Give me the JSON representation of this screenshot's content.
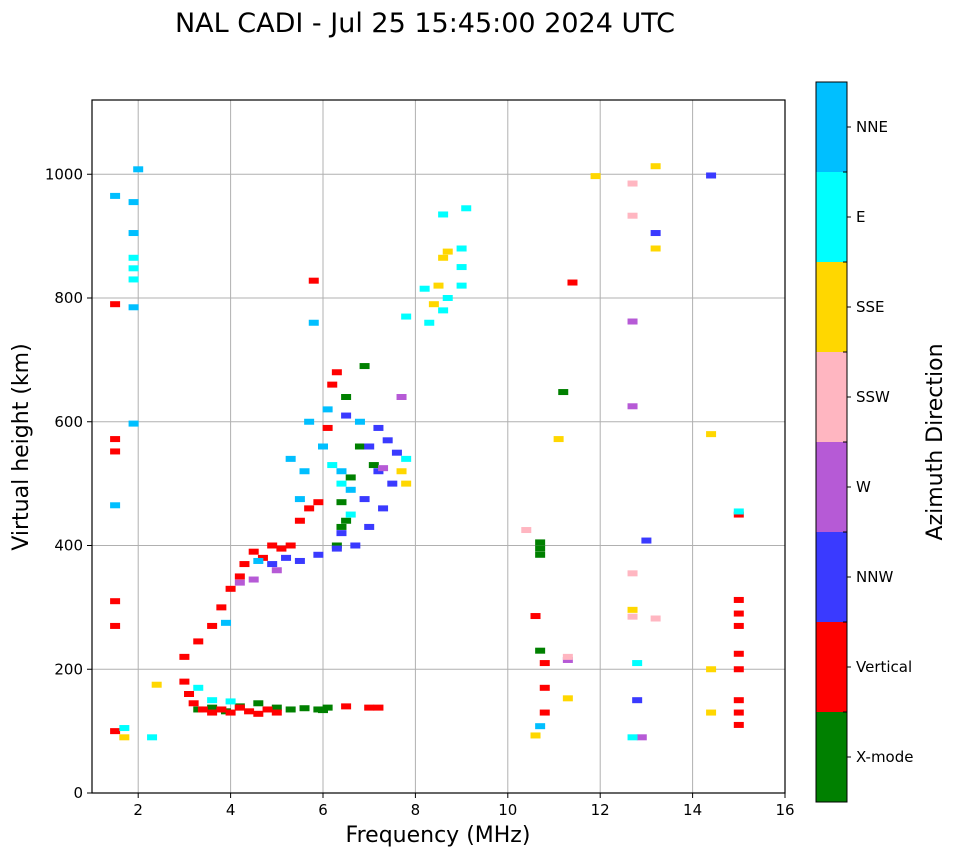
{
  "chart_data": {
    "type": "scatter",
    "title": "NAL CADI - Jul 25 15:45:00 2024 UTC",
    "xlabel": "Frequency (MHz)",
    "ylabel": "Virtual height (km)",
    "xlim": [
      1,
      16
    ],
    "ylim": [
      0,
      1120
    ],
    "xticks": [
      2,
      4,
      6,
      8,
      10,
      12,
      14,
      16
    ],
    "yticks": [
      0,
      200,
      400,
      600,
      800,
      1000
    ],
    "grid": true,
    "colorbar": {
      "label": "Azimuth Direction",
      "categories": [
        {
          "name": "X-mode",
          "color": "#008000"
        },
        {
          "name": "Vertical",
          "color": "#ff0000"
        },
        {
          "name": "NNW",
          "color": "#3a3aff"
        },
        {
          "name": "W",
          "color": "#b65ad6"
        },
        {
          "name": "SSW",
          "color": "#ffb6c1"
        },
        {
          "name": "SSE",
          "color": "#ffd700"
        },
        {
          "name": "E",
          "color": "#00ffff"
        },
        {
          "name": "NNE",
          "color": "#00bfff"
        }
      ]
    },
    "series": [
      {
        "name": "X-mode",
        "points": [
          [
            3.3,
            135
          ],
          [
            3.6,
            138
          ],
          [
            3.9,
            132
          ],
          [
            4.2,
            140
          ],
          [
            4.6,
            145
          ],
          [
            5.0,
            138
          ],
          [
            5.3,
            135
          ],
          [
            5.6,
            137
          ],
          [
            5.9,
            135
          ],
          [
            6.0,
            134
          ],
          [
            6.1,
            138
          ],
          [
            6.3,
            400
          ],
          [
            6.4,
            430
          ],
          [
            6.4,
            470
          ],
          [
            6.5,
            440
          ],
          [
            6.6,
            510
          ],
          [
            6.5,
            640
          ],
          [
            6.8,
            560
          ],
          [
            7.1,
            530
          ],
          [
            6.9,
            690
          ],
          [
            10.7,
            405
          ],
          [
            10.7,
            385
          ],
          [
            10.7,
            395
          ],
          [
            10.7,
            230
          ],
          [
            11.2,
            648
          ]
        ]
      },
      {
        "name": "Vertical",
        "points": [
          [
            1.5,
            100
          ],
          [
            1.5,
            270
          ],
          [
            1.5,
            310
          ],
          [
            1.5,
            552
          ],
          [
            1.5,
            572
          ],
          [
            1.5,
            790
          ],
          [
            3.0,
            180
          ],
          [
            3.1,
            160
          ],
          [
            3.2,
            145
          ],
          [
            3.4,
            135
          ],
          [
            3.6,
            130
          ],
          [
            3.8,
            135
          ],
          [
            4.0,
            130
          ],
          [
            4.2,
            138
          ],
          [
            4.4,
            132
          ],
          [
            4.6,
            128
          ],
          [
            4.8,
            135
          ],
          [
            5.0,
            130
          ],
          [
            3.0,
            220
          ],
          [
            3.3,
            245
          ],
          [
            3.6,
            270
          ],
          [
            3.8,
            300
          ],
          [
            4.0,
            330
          ],
          [
            4.2,
            350
          ],
          [
            4.3,
            370
          ],
          [
            4.5,
            390
          ],
          [
            4.7,
            380
          ],
          [
            4.9,
            400
          ],
          [
            5.1,
            395
          ],
          [
            5.3,
            400
          ],
          [
            5.5,
            440
          ],
          [
            5.7,
            460
          ],
          [
            5.9,
            470
          ],
          [
            6.1,
            590
          ],
          [
            6.2,
            660
          ],
          [
            6.3,
            680
          ],
          [
            5.8,
            828
          ],
          [
            6.5,
            140
          ],
          [
            7.0,
            138
          ],
          [
            7.2,
            138
          ],
          [
            10.6,
            286
          ],
          [
            10.8,
            130
          ],
          [
            10.8,
            170
          ],
          [
            10.8,
            210
          ],
          [
            11.4,
            825
          ],
          [
            15.0,
            110
          ],
          [
            15.0,
            130
          ],
          [
            15.0,
            150
          ],
          [
            15.0,
            200
          ],
          [
            15.0,
            225
          ],
          [
            15.0,
            270
          ],
          [
            15.0,
            290
          ],
          [
            15.0,
            312
          ],
          [
            15.0,
            450
          ]
        ]
      },
      {
        "name": "NNW",
        "points": [
          [
            4.9,
            370
          ],
          [
            5.2,
            380
          ],
          [
            5.5,
            375
          ],
          [
            5.9,
            385
          ],
          [
            6.3,
            395
          ],
          [
            6.7,
            400
          ],
          [
            7.0,
            430
          ],
          [
            7.3,
            460
          ],
          [
            7.5,
            500
          ],
          [
            7.6,
            550
          ],
          [
            7.2,
            520
          ],
          [
            6.9,
            475
          ],
          [
            6.4,
            420
          ],
          [
            7.4,
            570
          ],
          [
            7.2,
            590
          ],
          [
            6.5,
            610
          ],
          [
            7.0,
            560
          ],
          [
            12.8,
            150
          ],
          [
            13.0,
            408
          ],
          [
            13.2,
            905
          ],
          [
            14.4,
            998
          ]
        ]
      },
      {
        "name": "W",
        "points": [
          [
            4.2,
            340
          ],
          [
            4.5,
            345
          ],
          [
            5.0,
            360
          ],
          [
            7.3,
            525
          ],
          [
            7.7,
            640
          ],
          [
            12.9,
            90
          ],
          [
            12.7,
            625
          ],
          [
            12.7,
            762
          ],
          [
            11.3,
            215
          ]
        ]
      },
      {
        "name": "SSW",
        "points": [
          [
            10.4,
            425
          ],
          [
            12.7,
            355
          ],
          [
            12.7,
            285
          ],
          [
            13.2,
            282
          ],
          [
            11.3,
            220
          ],
          [
            12.7,
            985
          ],
          [
            12.7,
            933
          ]
        ]
      },
      {
        "name": "SSE",
        "points": [
          [
            1.7,
            90
          ],
          [
            2.4,
            175
          ],
          [
            8.4,
            790
          ],
          [
            8.6,
            865
          ],
          [
            8.5,
            820
          ],
          [
            8.7,
            875
          ],
          [
            7.8,
            500
          ],
          [
            7.7,
            520
          ],
          [
            11.1,
            572
          ],
          [
            11.3,
            153
          ],
          [
            10.6,
            93
          ],
          [
            12.7,
            296
          ],
          [
            13.2,
            880
          ],
          [
            13.2,
            1013
          ],
          [
            11.9,
            997
          ],
          [
            14.4,
            580
          ],
          [
            14.4,
            200
          ],
          [
            14.4,
            130
          ]
        ]
      },
      {
        "name": "E",
        "points": [
          [
            1.7,
            105
          ],
          [
            2.3,
            90
          ],
          [
            1.9,
            848
          ],
          [
            1.9,
            830
          ],
          [
            1.9,
            865
          ],
          [
            3.3,
            170
          ],
          [
            3.6,
            150
          ],
          [
            4.0,
            148
          ],
          [
            8.3,
            760
          ],
          [
            8.2,
            815
          ],
          [
            8.6,
            780
          ],
          [
            8.7,
            800
          ],
          [
            9.0,
            820
          ],
          [
            9.0,
            850
          ],
          [
            9.0,
            880
          ],
          [
            8.6,
            935
          ],
          [
            9.1,
            945
          ],
          [
            7.8,
            770
          ],
          [
            7.8,
            540
          ],
          [
            6.2,
            530
          ],
          [
            6.6,
            450
          ],
          [
            6.4,
            500
          ],
          [
            12.7,
            90
          ],
          [
            12.8,
            210
          ],
          [
            15.0,
            455
          ]
        ]
      },
      {
        "name": "NNE",
        "points": [
          [
            1.5,
            465
          ],
          [
            1.5,
            965
          ],
          [
            2.0,
            1008
          ],
          [
            1.9,
            955
          ],
          [
            1.9,
            905
          ],
          [
            1.9,
            785
          ],
          [
            1.9,
            597
          ],
          [
            3.9,
            275
          ],
          [
            4.6,
            375
          ],
          [
            5.3,
            540
          ],
          [
            5.5,
            475
          ],
          [
            5.7,
            600
          ],
          [
            5.8,
            760
          ],
          [
            5.6,
            520
          ],
          [
            6.0,
            560
          ],
          [
            6.1,
            620
          ],
          [
            6.4,
            520
          ],
          [
            6.6,
            490
          ],
          [
            6.8,
            600
          ],
          [
            10.7,
            108
          ]
        ]
      }
    ]
  }
}
